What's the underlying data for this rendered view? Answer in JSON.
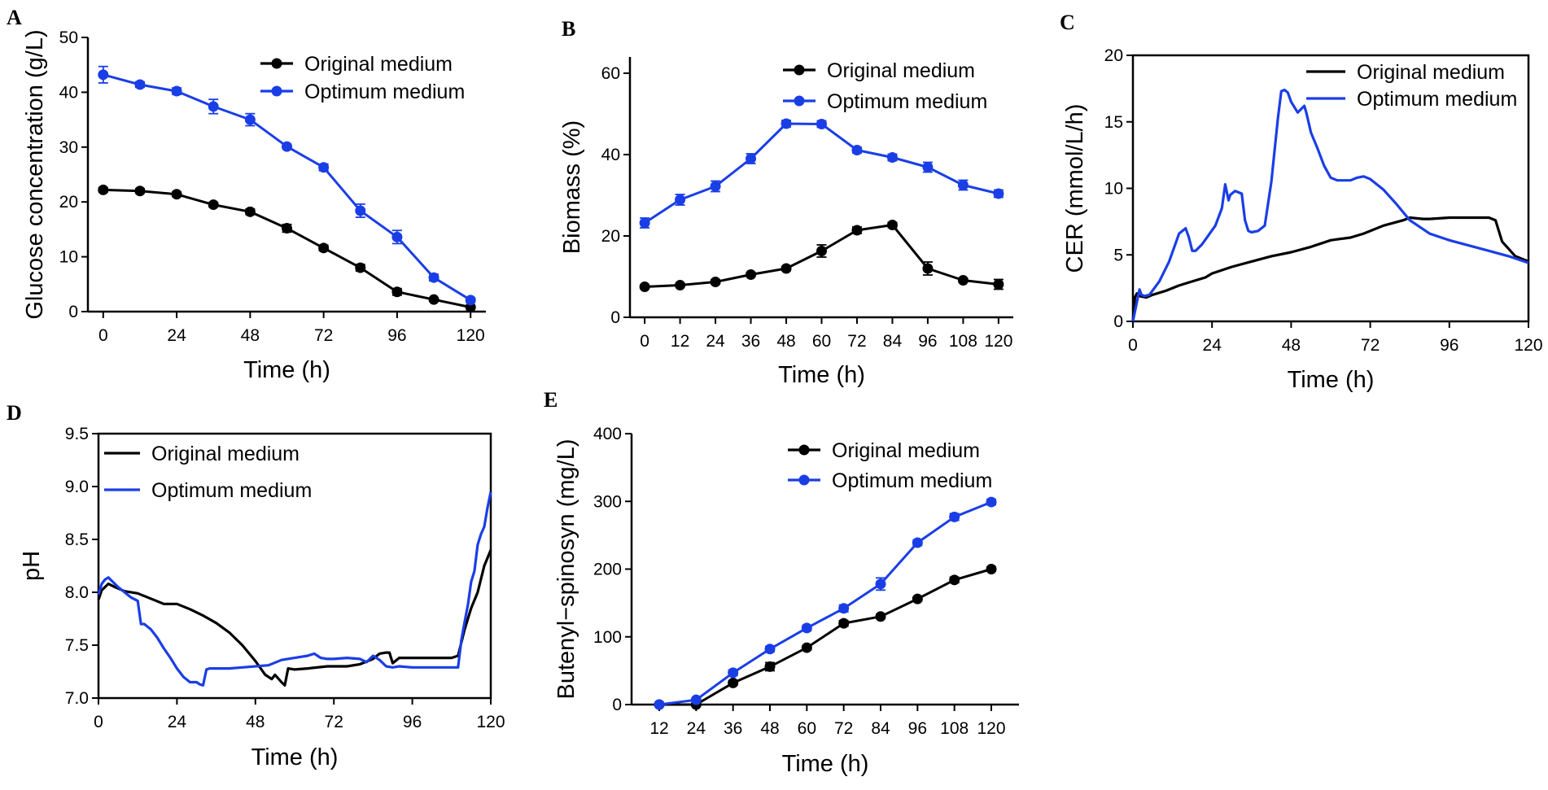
{
  "colors": {
    "original": "#000000",
    "optimum": "#1a3ee6"
  },
  "chart_data": [
    {
      "panel": "A",
      "type": "line",
      "xlabel": "Time (h)",
      "ylabel": "Glucose concentration (g/L)",
      "xlim": [
        -5,
        125
      ],
      "ylim": [
        0,
        50
      ],
      "xticks": [
        0,
        24,
        48,
        72,
        96,
        120
      ],
      "xtick_labels": [
        "0",
        "24",
        "48",
        "72",
        "96",
        "120"
      ],
      "yticks": [
        0,
        10,
        20,
        30,
        40,
        50
      ],
      "ytick_labels": [
        "0",
        "10",
        "20",
        "30",
        "40",
        "50"
      ],
      "legend_position": "top-right",
      "markers": true,
      "series": [
        {
          "name": "Original medium",
          "color_key": "original",
          "x": [
            0,
            12,
            24,
            36,
            48,
            60,
            72,
            84,
            96,
            108,
            120
          ],
          "y": [
            22.2,
            22.0,
            21.4,
            19.5,
            18.2,
            15.2,
            11.6,
            8.0,
            3.6,
            2.2,
            0.8
          ],
          "err": [
            0.4,
            0.4,
            0.4,
            0.4,
            0.5,
            0.7,
            0.5,
            0.6,
            0.6,
            0.3,
            0.2
          ]
        },
        {
          "name": "Optimum medium",
          "color_key": "optimum",
          "x": [
            0,
            12,
            24,
            36,
            48,
            60,
            72,
            84,
            96,
            108,
            120
          ],
          "y": [
            43.2,
            41.4,
            40.2,
            37.4,
            35.0,
            30.1,
            26.3,
            18.4,
            13.6,
            6.2,
            2.1
          ],
          "err": [
            1.5,
            0.5,
            0.6,
            1.3,
            1.1,
            0.4,
            0.6,
            1.2,
            1.2,
            0.6,
            0.4
          ]
        }
      ]
    },
    {
      "panel": "B",
      "type": "line",
      "xlabel": "Time (h)",
      "ylabel": "Biomass (%)",
      "xlim": [
        -5,
        125
      ],
      "ylim": [
        0,
        64
      ],
      "xticks": [
        0,
        12,
        24,
        36,
        48,
        60,
        72,
        84,
        96,
        108,
        120
      ],
      "xtick_labels": [
        "0",
        "12",
        "24",
        "36",
        "48",
        "60",
        "72",
        "84",
        "96",
        "108",
        "120"
      ],
      "yticks": [
        0,
        20,
        40,
        60
      ],
      "ytick_labels": [
        "0",
        "20",
        "40",
        "60"
      ],
      "legend_position": "top-right",
      "markers": true,
      "series": [
        {
          "name": "Original medium",
          "color_key": "original",
          "x": [
            0,
            12,
            24,
            36,
            48,
            60,
            72,
            84,
            96,
            108,
            120
          ],
          "y": [
            7.5,
            7.9,
            8.7,
            10.5,
            12.0,
            16.3,
            21.4,
            22.7,
            12.0,
            9.1,
            8.1
          ],
          "err": [
            0.4,
            0.4,
            0.5,
            0.5,
            0.5,
            1.5,
            0.8,
            0.6,
            1.6,
            0.4,
            1.2
          ]
        },
        {
          "name": "Optimum medium",
          "color_key": "optimum",
          "x": [
            0,
            12,
            24,
            36,
            48,
            60,
            72,
            84,
            96,
            108,
            120
          ],
          "y": [
            23.2,
            28.9,
            32.2,
            39.0,
            47.6,
            47.5,
            41.1,
            39.3,
            36.9,
            32.5,
            30.4
          ],
          "err": [
            1.2,
            1.3,
            1.3,
            1.2,
            0.8,
            0.8,
            0.7,
            0.8,
            1.2,
            1.2,
            0.9
          ]
        }
      ]
    },
    {
      "panel": "C",
      "type": "line",
      "xlabel": "Time (h)",
      "ylabel": "CER (mmol/L/h)",
      "xlim": [
        0,
        120
      ],
      "ylim": [
        0,
        20
      ],
      "xticks": [
        0,
        24,
        48,
        72,
        96,
        120
      ],
      "xtick_labels": [
        "0",
        "24",
        "48",
        "72",
        "96",
        "120"
      ],
      "yticks": [
        0,
        5,
        10,
        15,
        20
      ],
      "ytick_labels": [
        "0",
        "5",
        "10",
        "15",
        "20"
      ],
      "legend_position": "top-right",
      "markers": false,
      "series": [
        {
          "name": "Original medium",
          "color_key": "original",
          "x": [
            0,
            0.6,
            1.2,
            2,
            4,
            6,
            10,
            14,
            18,
            22,
            24,
            30,
            36,
            42,
            48,
            54,
            60,
            63,
            66,
            70,
            76,
            82,
            84,
            88,
            90,
            96,
            100,
            104,
            108,
            110,
            112,
            116,
            120
          ],
          "y": [
            0,
            1.8,
            2.1,
            1.9,
            1.8,
            2.0,
            2.3,
            2.7,
            3.0,
            3.3,
            3.6,
            4.1,
            4.5,
            4.9,
            5.2,
            5.6,
            6.1,
            6.2,
            6.3,
            6.6,
            7.2,
            7.6,
            7.8,
            7.7,
            7.7,
            7.8,
            7.8,
            7.8,
            7.8,
            7.6,
            6.0,
            4.9,
            4.5
          ]
        },
        {
          "name": "Optimum medium",
          "color_key": "optimum",
          "x": [
            0,
            1,
            2,
            2.6,
            3.5,
            5,
            8,
            11,
            14,
            16,
            17,
            18,
            19,
            21,
            23,
            25,
            27,
            28,
            29,
            29.5,
            30,
            31,
            33,
            34,
            35,
            36,
            38,
            40,
            42,
            44,
            45,
            46,
            47,
            48,
            50,
            52,
            52.6,
            54,
            56,
            58,
            60,
            62,
            66,
            68,
            70,
            72,
            76,
            80,
            84,
            90,
            96,
            102,
            108,
            114,
            120
          ],
          "y": [
            0,
            1.2,
            2.4,
            2.0,
            1.9,
            2.0,
            3.0,
            4.5,
            6.6,
            7.0,
            6.3,
            5.3,
            5.3,
            5.8,
            6.5,
            7.2,
            8.5,
            10.3,
            9.1,
            9.5,
            9.6,
            9.8,
            9.6,
            7.6,
            6.8,
            6.7,
            6.8,
            7.2,
            10.5,
            15.3,
            17.3,
            17.4,
            17.2,
            16.5,
            15.7,
            16.2,
            15.7,
            14.2,
            13.0,
            11.7,
            10.8,
            10.6,
            10.6,
            10.8,
            10.9,
            10.7,
            9.9,
            8.8,
            7.6,
            6.6,
            6.1,
            5.7,
            5.3,
            4.9,
            4.4
          ]
        }
      ]
    },
    {
      "panel": "D",
      "type": "line",
      "xlabel": "Time (h)",
      "ylabel": "pH",
      "xlim": [
        0,
        120
      ],
      "ylim": [
        7.0,
        9.5
      ],
      "xticks": [
        0,
        24,
        48,
        72,
        96,
        120
      ],
      "xtick_labels": [
        "0",
        "24",
        "48",
        "72",
        "96",
        "120"
      ],
      "yticks": [
        7.0,
        7.5,
        8.0,
        8.5,
        9.0,
        9.5
      ],
      "ytick_labels": [
        "7.0",
        "7.5",
        "8.0",
        "8.5",
        "9.0",
        "9.5"
      ],
      "legend_position": "top-left",
      "markers": false,
      "series": [
        {
          "name": "Original medium",
          "color_key": "original",
          "x": [
            0,
            1,
            3,
            5,
            8,
            12,
            16,
            20,
            24,
            28,
            32,
            36,
            40,
            44,
            48,
            51,
            53,
            54,
            56,
            57,
            58,
            60,
            64,
            70,
            76,
            80,
            84,
            86,
            88,
            89,
            90,
            92,
            96,
            100,
            104,
            108,
            110,
            112,
            114,
            116,
            118,
            120
          ],
          "y": [
            7.93,
            8.02,
            8.08,
            8.05,
            8.01,
            7.99,
            7.94,
            7.89,
            7.89,
            7.84,
            7.78,
            7.71,
            7.62,
            7.5,
            7.35,
            7.22,
            7.18,
            7.22,
            7.15,
            7.12,
            7.28,
            7.27,
            7.28,
            7.3,
            7.3,
            7.32,
            7.37,
            7.42,
            7.43,
            7.43,
            7.33,
            7.38,
            7.38,
            7.38,
            7.38,
            7.38,
            7.4,
            7.65,
            7.85,
            8.0,
            8.25,
            8.4
          ]
        },
        {
          "name": "Optimum medium",
          "color_key": "optimum",
          "x": [
            0,
            1,
            2,
            3,
            4,
            6,
            8,
            10,
            12,
            13,
            14,
            16,
            18,
            20,
            22,
            24,
            26,
            28,
            30,
            31,
            32,
            33,
            34,
            36,
            40,
            44,
            48,
            52,
            56,
            60,
            64,
            66,
            68,
            70,
            72,
            76,
            80,
            82,
            84,
            86,
            88,
            90,
            92,
            96,
            100,
            104,
            108,
            110,
            111,
            112,
            113,
            114,
            115,
            116,
            117,
            118,
            119,
            120
          ],
          "y": [
            7.98,
            8.08,
            8.12,
            8.14,
            8.11,
            8.05,
            8.0,
            7.95,
            7.92,
            7.7,
            7.7,
            7.65,
            7.57,
            7.47,
            7.38,
            7.28,
            7.2,
            7.15,
            7.15,
            7.13,
            7.12,
            7.27,
            7.28,
            7.28,
            7.28,
            7.29,
            7.3,
            7.31,
            7.36,
            7.38,
            7.4,
            7.42,
            7.38,
            7.37,
            7.37,
            7.38,
            7.37,
            7.34,
            7.4,
            7.36,
            7.3,
            7.29,
            7.3,
            7.29,
            7.29,
            7.29,
            7.29,
            7.29,
            7.55,
            7.72,
            7.88,
            8.1,
            8.2,
            8.45,
            8.55,
            8.62,
            8.8,
            8.95
          ]
        }
      ]
    },
    {
      "panel": "E",
      "type": "line",
      "xlabel": "Time (h)",
      "ylabel": "Butenyl−spinosyn (mg/L)",
      "xlim": [
        3,
        129
      ],
      "ylim": [
        0,
        400
      ],
      "xticks": [
        12,
        24,
        36,
        48,
        60,
        72,
        84,
        96,
        108,
        120
      ],
      "xtick_labels": [
        "12",
        "24",
        "36",
        "48",
        "60",
        "72",
        "84",
        "96",
        "108",
        "120"
      ],
      "yticks": [
        0,
        100,
        200,
        300,
        400
      ],
      "ytick_labels": [
        "0",
        "100",
        "200",
        "300",
        "400"
      ],
      "legend_position": "top-right",
      "markers": true,
      "series": [
        {
          "name": "Original medium",
          "color_key": "original",
          "x": [
            12,
            24,
            36,
            48,
            60,
            72,
            84,
            96,
            108,
            120
          ],
          "y": [
            0,
            0,
            32,
            56,
            84,
            120,
            130,
            156,
            184,
            200
          ],
          "err": [
            1,
            1,
            3,
            6,
            3,
            4,
            3,
            3,
            4,
            3
          ]
        },
        {
          "name": "Optimum medium",
          "color_key": "optimum",
          "x": [
            12,
            24,
            36,
            48,
            60,
            72,
            84,
            96,
            108,
            120
          ],
          "y": [
            0,
            7,
            47,
            82,
            113,
            142,
            178,
            239,
            277,
            299
          ],
          "err": [
            1,
            2,
            4,
            4,
            4,
            5,
            9,
            4,
            5,
            4
          ]
        }
      ]
    }
  ]
}
